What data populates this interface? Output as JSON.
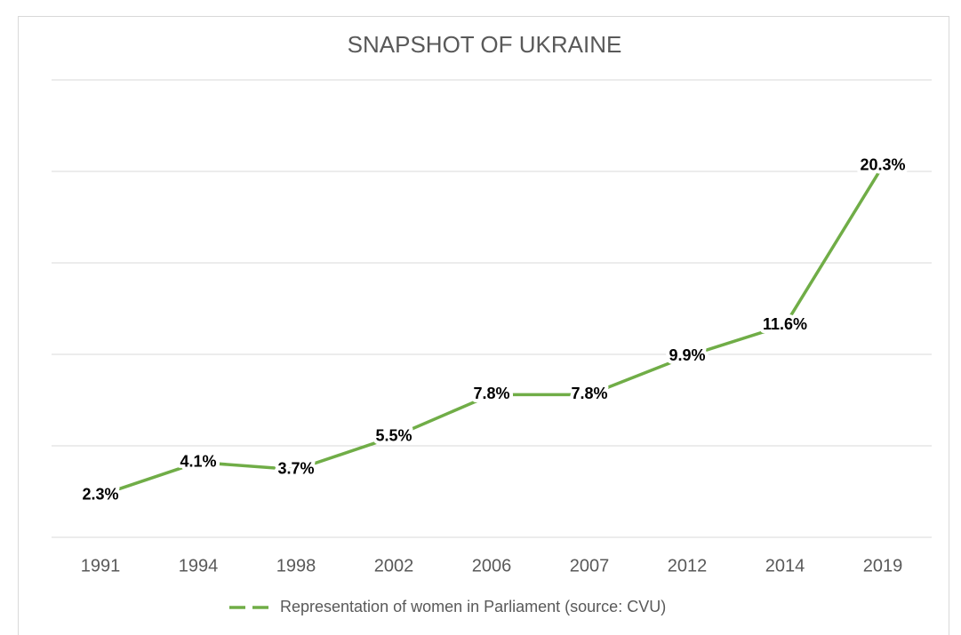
{
  "chart_data": {
    "type": "line",
    "title": "SNAPSHOT OF UKRAINE",
    "categories": [
      "1991",
      "1994",
      "1998",
      "2002",
      "2006",
      "2007",
      "2012",
      "2014",
      "2019"
    ],
    "series": [
      {
        "name": "Representation of women in Parliament (source: CVU)",
        "color": "#70ad47",
        "values": [
          2.3,
          4.1,
          3.7,
          5.5,
          7.8,
          7.8,
          9.9,
          11.6,
          20.3
        ],
        "value_labels": [
          "2.3%",
          "4.1%",
          "3.7%",
          "5.5%",
          "7.8%",
          "7.8%",
          "9.9%",
          "11.6%",
          "20.3%"
        ]
      }
    ],
    "ylim": [
      0,
      25
    ],
    "yticks": [
      0,
      5,
      10,
      15,
      20,
      25
    ],
    "grid": true,
    "legend": "bottom"
  }
}
